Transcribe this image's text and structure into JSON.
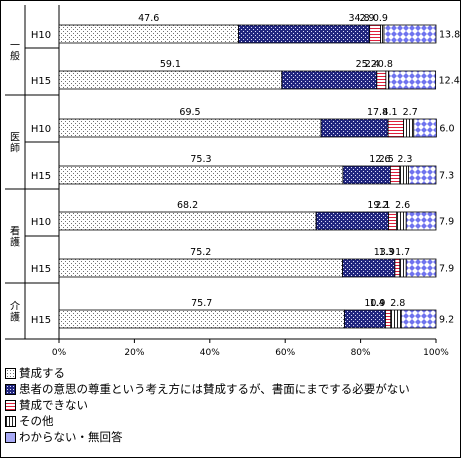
{
  "chart_data": {
    "type": "bar",
    "stacked": true,
    "orientation": "horizontal",
    "groups": [
      {
        "name": "一般",
        "rows": [
          "H10",
          "H15"
        ]
      },
      {
        "name": "医師",
        "rows": [
          "H10",
          "H15"
        ]
      },
      {
        "name": "看護",
        "rows": [
          "H10",
          "H15"
        ]
      },
      {
        "name": "介護",
        "rows": [
          "H15"
        ]
      }
    ],
    "categories": [
      "H10",
      "H15",
      "H10",
      "H15",
      "H10",
      "H15",
      "H15"
    ],
    "series": [
      {
        "name": "賛成する",
        "values": [
          47.6,
          59.1,
          69.5,
          75.3,
          68.2,
          75.2,
          75.7
        ],
        "color": "#ffffff",
        "pattern": "dots"
      },
      {
        "name": "患者の意思の尊重という考え方には賛成するが、書面にまでする必要がない",
        "values": [
          34.8,
          25.2,
          17.8,
          12.6,
          19.2,
          13.9,
          10.9
        ],
        "color": "#2b2f8f",
        "pattern": "checker"
      },
      {
        "name": "賛成できない",
        "values": [
          2.9,
          2.4,
          4.1,
          2.5,
          2.1,
          1.3,
          1.4
        ],
        "color": "#e0203c",
        "pattern": "hlines"
      },
      {
        "name": "その他",
        "values": [
          0.9,
          0.8,
          2.7,
          2.3,
          2.6,
          1.7,
          2.8
        ],
        "color": "#333333",
        "pattern": "vlines"
      },
      {
        "name": "わからない・無回答",
        "values": [
          13.8,
          12.4,
          6.0,
          7.3,
          7.9,
          7.9,
          9.2
        ],
        "color": "#7c7ff0",
        "pattern": "diamonds"
      }
    ],
    "xlim": [
      0,
      100
    ],
    "xticks": [
      "0%",
      "20%",
      "40%",
      "60%",
      "80%",
      "100%"
    ],
    "grid": false,
    "legend_position": "bottom"
  }
}
